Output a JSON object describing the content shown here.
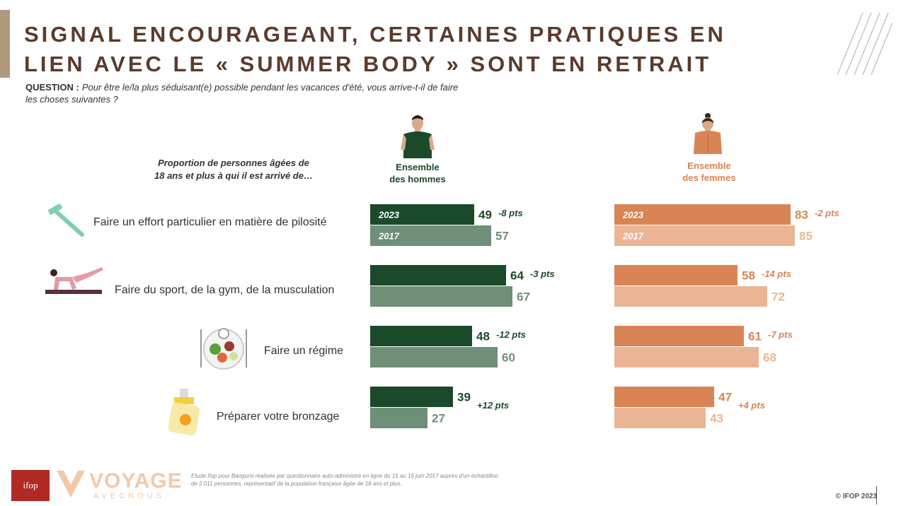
{
  "title_line1": "SIGNAL ENCOURAGEANT, CERTAINES PRATIQUES EN",
  "title_line2": "LIEN AVEC LE « SUMMER BODY » SONT EN RETRAIT",
  "question_label": "QUESTION :",
  "question_text": "Pour être le/la plus séduisant(e) possible pendant les vacances d'été, vous arrive-t-il de faire les choses suivantes ?",
  "proportion_line1": "Proportion de personnes âgées de",
  "proportion_line2": "18 ans et plus à qui il est arrivé de…",
  "men_label_line1": "Ensemble",
  "men_label_line2": "des hommes",
  "women_label_line1": "Ensemble",
  "women_label_line2": "des femmes",
  "footer_note": "Etude Ifop pour Bangumi réalisée par questionnaire auto-administré en ligne du 15 au 16 juin 2017 auprès d'un échantillon de 2 011 personnes, représentatif de la population française âgée de 18 ans et plus.",
  "copyright": "© IFOP 2023",
  "logo_ifop": "ifop",
  "logo_voyage": "VOYAGE",
  "logo_voyage_sub": "AVECNOUS",
  "colors": {
    "men_2023": "#1b4a2b",
    "men_2017": "#6f8f78",
    "women_2023": "#d98454",
    "women_2017": "#eab594",
    "title": "#5b3b2a"
  },
  "chart_data": {
    "type": "bar",
    "orientation": "horizontal",
    "categories": [
      "Faire un effort particulier en matière de pilosité",
      "Faire du sport, de la gym, de la musculation",
      "Faire un régime",
      "Préparer votre bronzage"
    ],
    "category_icons": [
      "razor-icon",
      "fitness-woman-icon",
      "diet-plate-icon",
      "sunscreen-icon"
    ],
    "groups": [
      {
        "name": "Ensemble des hommes",
        "series": [
          {
            "name": "2023",
            "values": [
              49,
              64,
              48,
              39
            ]
          },
          {
            "name": "2017",
            "values": [
              57,
              67,
              60,
              27
            ]
          }
        ],
        "changes": [
          "-8 pts",
          "-3 pts",
          "-12 pts",
          "+12 pts"
        ]
      },
      {
        "name": "Ensemble des femmes",
        "series": [
          {
            "name": "2023",
            "values": [
              83,
              58,
              61,
              47
            ]
          },
          {
            "name": "2017",
            "values": [
              85,
              72,
              68,
              43
            ]
          }
        ],
        "changes": [
          "-2 pts",
          "-14 pts",
          "-7 pts",
          "+4 pts"
        ]
      }
    ],
    "year_labels_shown_on_first_row": [
      "2023",
      "2017"
    ],
    "xlim": [
      0,
      100
    ]
  }
}
